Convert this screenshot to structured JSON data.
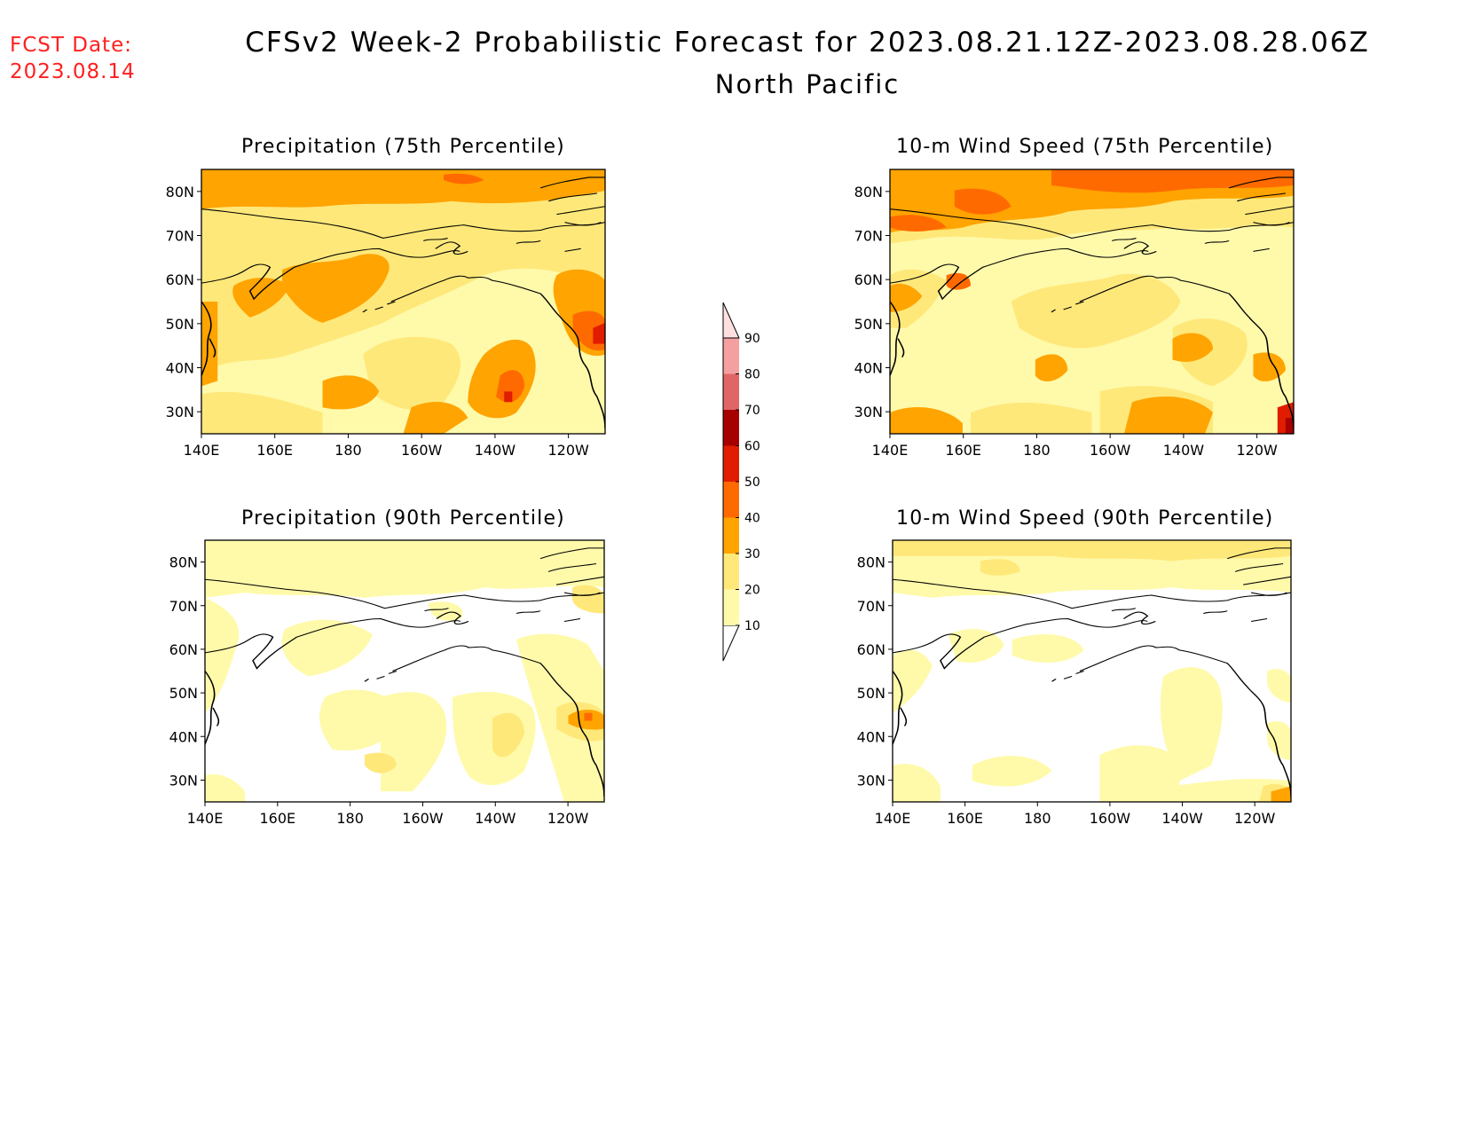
{
  "header": {
    "fcst_label": "FCST Date:",
    "fcst_date": "2023.08.14",
    "title": "CFSv2 Week-2 Probabilistic Forecast for 2023.08.21.12Z-2023.08.28.06Z",
    "region": "North Pacific"
  },
  "panels": [
    {
      "title": "Precipitation (75th Percentile)"
    },
    {
      "title": "10-m Wind Speed (75th Percentile)"
    },
    {
      "title": "Precipitation (90th Percentile)"
    },
    {
      "title": "10-m Wind Speed (90th Percentile)"
    }
  ],
  "axes": {
    "lat_labels": [
      "80N",
      "70N",
      "60N",
      "50N",
      "40N",
      "30N"
    ],
    "lon_labels": [
      "140E",
      "160E",
      "180",
      "160W",
      "140W",
      "120W"
    ]
  },
  "colorbar": {
    "levels": [
      "10",
      "20",
      "30",
      "40",
      "50",
      "60",
      "70",
      "80",
      "90"
    ],
    "colors": [
      "#fffaaa",
      "#ffe87a",
      "#ffa400",
      "#ff6a00",
      "#e01d00",
      "#a60000",
      "#e06666",
      "#f5a0a0",
      "#ffe0e0"
    ]
  },
  "shade_colors": {
    "c10": "#fffaaa",
    "c20": "#ffe87a",
    "c30": "#ffa400",
    "c40": "#ff6a00",
    "c50": "#e01d00",
    "c60": "#a60000"
  }
}
